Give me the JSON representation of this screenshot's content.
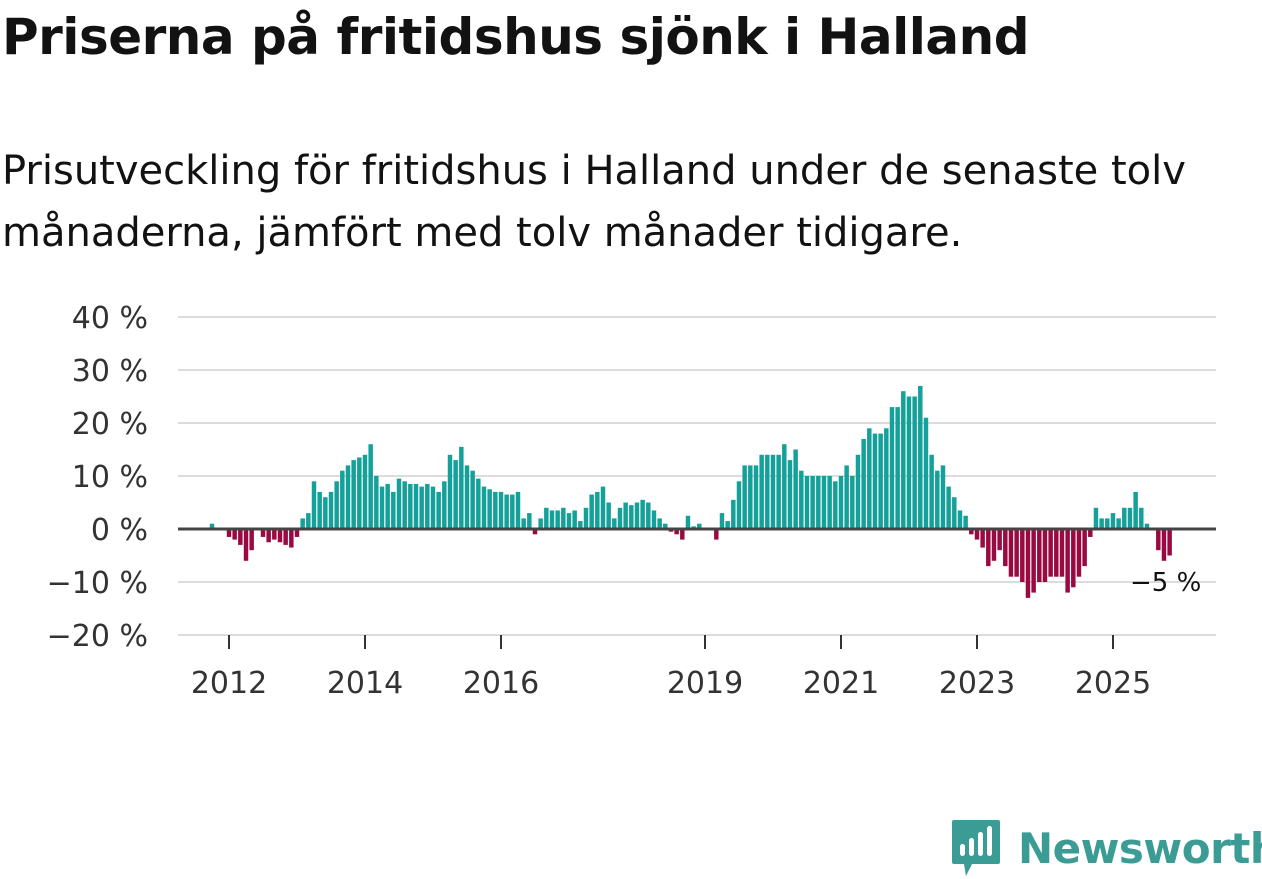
{
  "title": "Priserna på fritidshus sjönk i Halland",
  "subtitle": "Prisutveckling för fritidshus i Halland under de senaste tolv månaderna, jämfört med tolv månader tidigare.",
  "brand": {
    "name": "Newsworthy",
    "color": "#3a9c94"
  },
  "chart_data": {
    "type": "bar",
    "title": "",
    "xlabel": "",
    "ylabel": "",
    "ylim": [
      -20,
      40
    ],
    "yticks": [
      40,
      30,
      20,
      10,
      0,
      -10,
      -20
    ],
    "ytick_labels": [
      "40 %",
      "30 %",
      "20 %",
      "10 %",
      "0 %",
      "−10 %",
      "−20 %"
    ],
    "xticks": [
      2012,
      2014,
      2016,
      2019,
      2021,
      2023,
      2025
    ],
    "xtick_labels": [
      "2012",
      "2014",
      "2016",
      "2019",
      "2021",
      "2023",
      "2025"
    ],
    "positive_color": "#14a19a",
    "negative_color": "#9a0a42",
    "annotation": {
      "label": "−5 %",
      "value": -5
    },
    "start": 2011.75,
    "step": 0.08333,
    "values": [
      1,
      0,
      0,
      -1.5,
      -2,
      -3,
      -6,
      -4,
      0,
      -1.5,
      -2.5,
      -2,
      -2.5,
      -3,
      -3.5,
      -1.5,
      2,
      3,
      9,
      7,
      6,
      7,
      9,
      11,
      12,
      13,
      13.5,
      14,
      16,
      10,
      8,
      8.5,
      7,
      9.5,
      9,
      8.5,
      8.5,
      8,
      8.5,
      8,
      7,
      9,
      14,
      13,
      15.5,
      12,
      11,
      9.5,
      8,
      7.5,
      7,
      7,
      6.5,
      6.5,
      7,
      2,
      3,
      -1,
      2,
      4,
      3.5,
      3.5,
      4,
      3,
      3.5,
      1.5,
      4,
      6.5,
      7,
      8,
      5,
      2,
      4,
      5,
      4.5,
      5,
      5.5,
      5,
      3.5,
      2,
      1,
      -0.5,
      -1,
      -2,
      2.5,
      0.5,
      1,
      0,
      0,
      -2,
      3,
      1.5,
      5.5,
      9,
      12,
      12,
      12,
      14,
      14,
      14,
      14,
      16,
      13,
      15,
      11,
      10,
      10,
      10,
      10,
      10,
      9,
      10,
      12,
      10,
      14,
      17,
      19,
      18,
      18,
      19,
      23,
      23,
      26,
      25,
      25,
      27,
      21,
      14,
      11,
      12,
      8,
      6,
      3.5,
      2.5,
      -1,
      -2,
      -3.5,
      -7,
      -6,
      -4,
      -7,
      -9,
      -9,
      -10,
      -13,
      -12,
      -10,
      -10,
      -9,
      -9,
      -9,
      -12,
      -11,
      -9,
      -7,
      -1.5,
      4,
      2,
      2,
      3,
      2,
      4,
      4,
      7,
      4,
      1,
      0,
      -4,
      -6,
      -5
    ]
  }
}
